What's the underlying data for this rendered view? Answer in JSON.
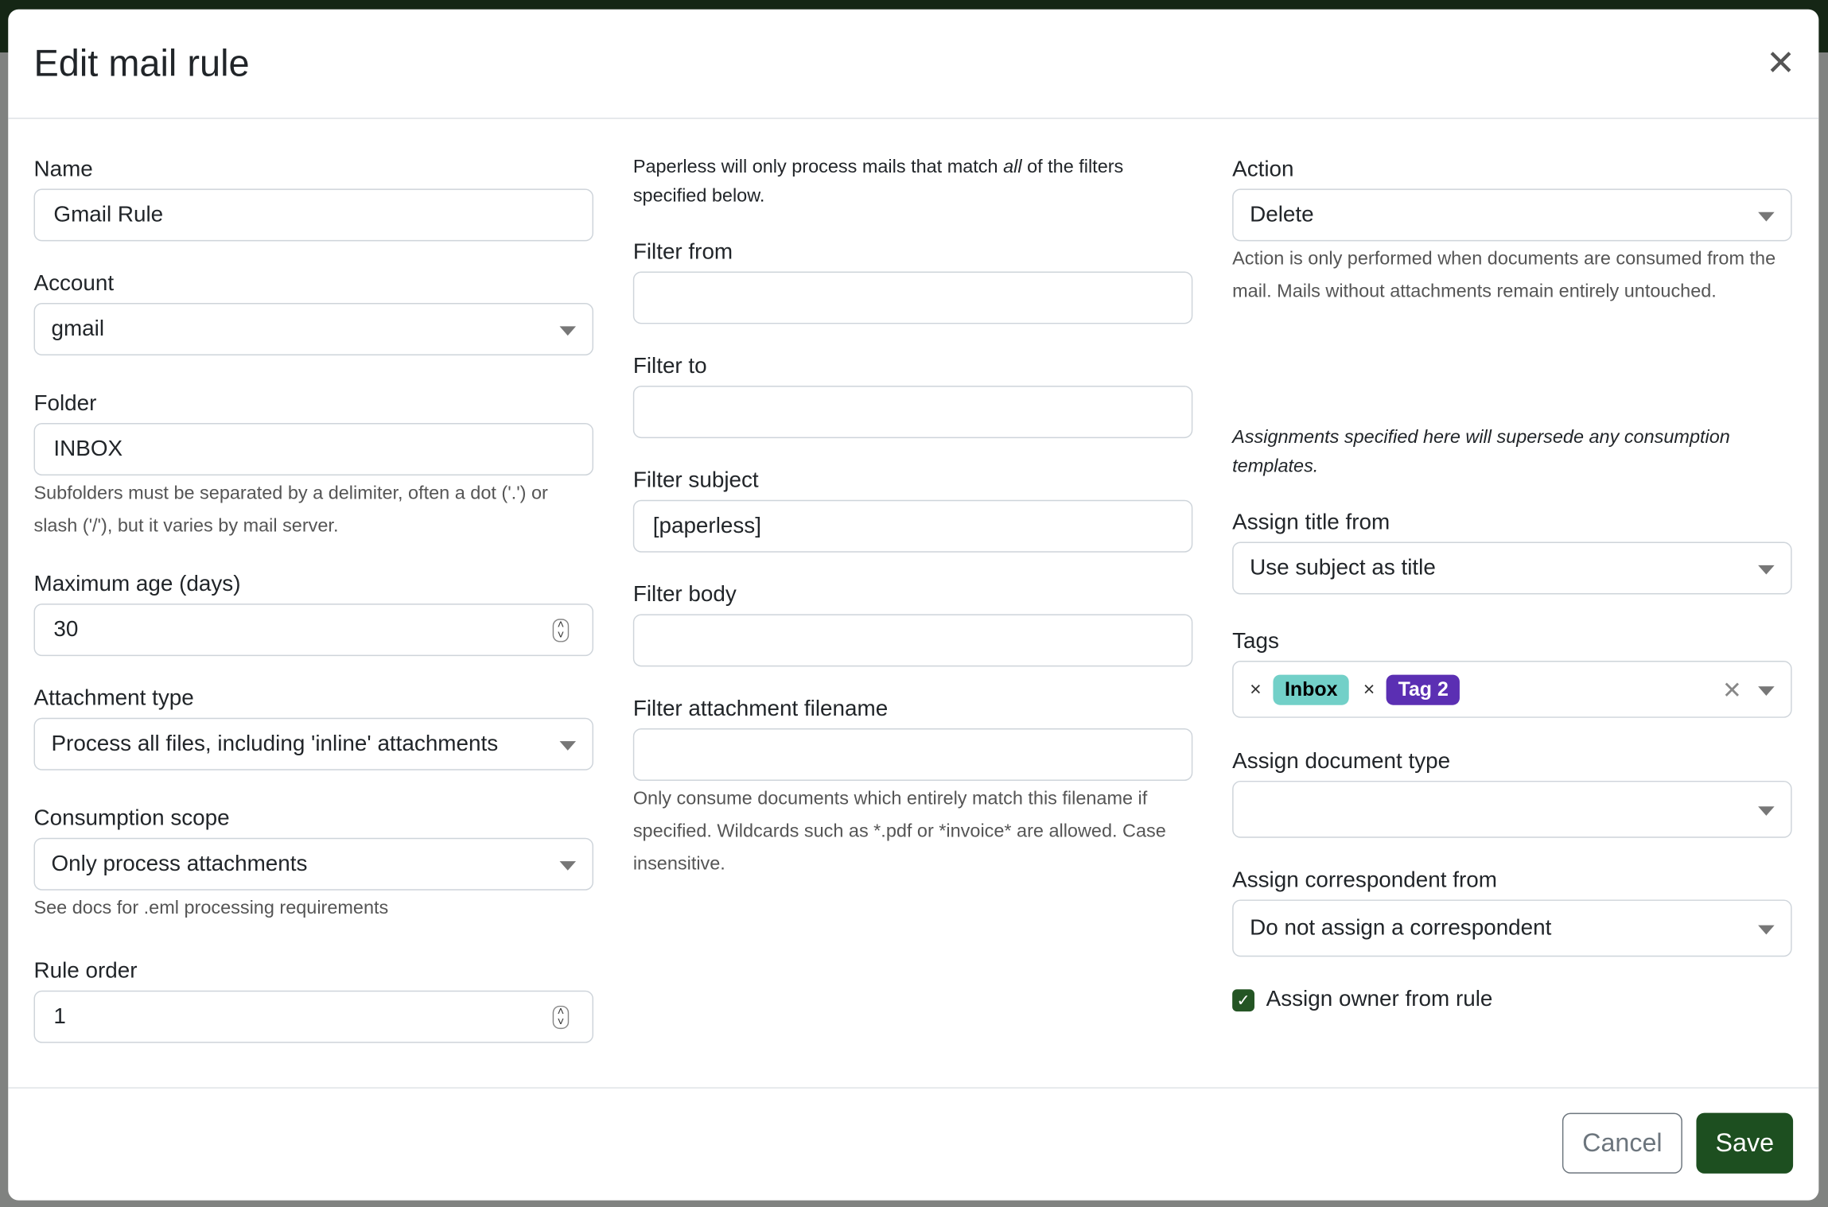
{
  "dialog": {
    "title": "Edit mail rule",
    "close_icon": "close-icon"
  },
  "left": {
    "name": {
      "label": "Name",
      "value": "Gmail Rule"
    },
    "account": {
      "label": "Account",
      "value": "gmail"
    },
    "folder": {
      "label": "Folder",
      "value": "INBOX",
      "help": "Subfolders must be separated by a delimiter, often a dot ('.') or slash ('/'), but it varies by mail server."
    },
    "max_age": {
      "label": "Maximum age (days)",
      "value": "30"
    },
    "attachment_type": {
      "label": "Attachment type",
      "value": "Process all files, including 'inline' attachments"
    },
    "consumption_scope": {
      "label": "Consumption scope",
      "value": "Only process attachments",
      "help": "See docs for .eml processing requirements"
    },
    "rule_order": {
      "label": "Rule order",
      "value": "1"
    }
  },
  "middle": {
    "intro_pre": "Paperless will only process mails that match ",
    "intro_em": "all",
    "intro_post": " of the filters specified below.",
    "filter_from": {
      "label": "Filter from",
      "value": ""
    },
    "filter_to": {
      "label": "Filter to",
      "value": ""
    },
    "filter_subject": {
      "label": "Filter subject",
      "value": "[paperless]"
    },
    "filter_body": {
      "label": "Filter body",
      "value": ""
    },
    "filter_attachment": {
      "label": "Filter attachment filename",
      "value": "",
      "help": "Only consume documents which entirely match this filename if specified. Wildcards such as *.pdf or *invoice* are allowed. Case insensitive."
    }
  },
  "right": {
    "action": {
      "label": "Action",
      "value": "Delete",
      "help": "Action is only performed when documents are consumed from the mail. Mails without attachments remain entirely untouched."
    },
    "assign_note": "Assignments specified here will supersede any consumption templates.",
    "assign_title": {
      "label": "Assign title from",
      "value": "Use subject as title"
    },
    "tags": {
      "label": "Tags",
      "items": [
        {
          "name": "Inbox",
          "bg": "#72d0c8",
          "fg": "#000000"
        },
        {
          "name": "Tag 2",
          "bg": "#5b2fb3",
          "fg": "#ffffff"
        }
      ]
    },
    "doc_type": {
      "label": "Assign document type",
      "value": ""
    },
    "correspondent": {
      "label": "Assign correspondent from",
      "value": "Do not assign a correspondent"
    },
    "owner": {
      "label": "Assign owner from rule",
      "checked": true
    }
  },
  "footer": {
    "cancel": "Cancel",
    "save": "Save"
  }
}
